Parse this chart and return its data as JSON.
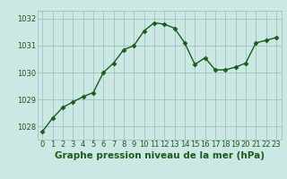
{
  "x": [
    0,
    1,
    2,
    3,
    4,
    5,
    6,
    7,
    8,
    9,
    10,
    11,
    12,
    13,
    14,
    15,
    16,
    17,
    18,
    19,
    20,
    21,
    22,
    23
  ],
  "y": [
    1027.8,
    1028.3,
    1028.7,
    1028.9,
    1029.1,
    1029.25,
    1030.0,
    1030.35,
    1030.85,
    1031.0,
    1031.55,
    1031.85,
    1031.8,
    1031.65,
    1031.1,
    1030.3,
    1030.55,
    1030.1,
    1030.1,
    1030.2,
    1030.35,
    1031.1,
    1031.2,
    1031.3
  ],
  "xlim": [
    -0.5,
    23.5
  ],
  "ylim": [
    1027.5,
    1032.3
  ],
  "yticks": [
    1028,
    1029,
    1030,
    1031,
    1032
  ],
  "xticks": [
    0,
    1,
    2,
    3,
    4,
    5,
    6,
    7,
    8,
    9,
    10,
    11,
    12,
    13,
    14,
    15,
    16,
    17,
    18,
    19,
    20,
    21,
    22,
    23
  ],
  "xlabel": "Graphe pression niveau de la mer (hPa)",
  "line_color": "#1a5c1a",
  "marker": "D",
  "marker_size": 2.5,
  "line_width": 1.0,
  "bg_color": "#cce8e4",
  "grid_color": "#99bbbb",
  "tick_label_fontsize": 6,
  "xlabel_fontsize": 7.5,
  "xlabel_color": "#1a5c1a",
  "xlabel_fontweight": "bold"
}
